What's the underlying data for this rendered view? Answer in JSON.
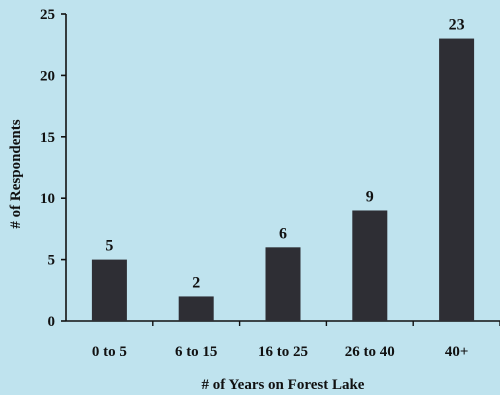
{
  "chart_data": {
    "type": "bar",
    "categories": [
      "0 to 5",
      "6 to 15",
      "16 to 25",
      "26 to 40",
      "40+"
    ],
    "values": [
      5,
      2,
      6,
      9,
      23
    ],
    "data_labels": [
      "5",
      "2",
      "6",
      "9",
      "23"
    ],
    "title": "",
    "xlabel": "# of Years on Forest Lake",
    "ylabel": "# of Respondents",
    "ylim": [
      0,
      25
    ],
    "yticks": [
      0,
      5,
      10,
      15,
      20,
      25
    ],
    "ytick_labels": [
      "0",
      "5",
      "10",
      "15",
      "20",
      "25"
    ],
    "grid": false,
    "legend": "none",
    "bar_color": "#2e2e34",
    "background_color": "#bfe3ee"
  }
}
